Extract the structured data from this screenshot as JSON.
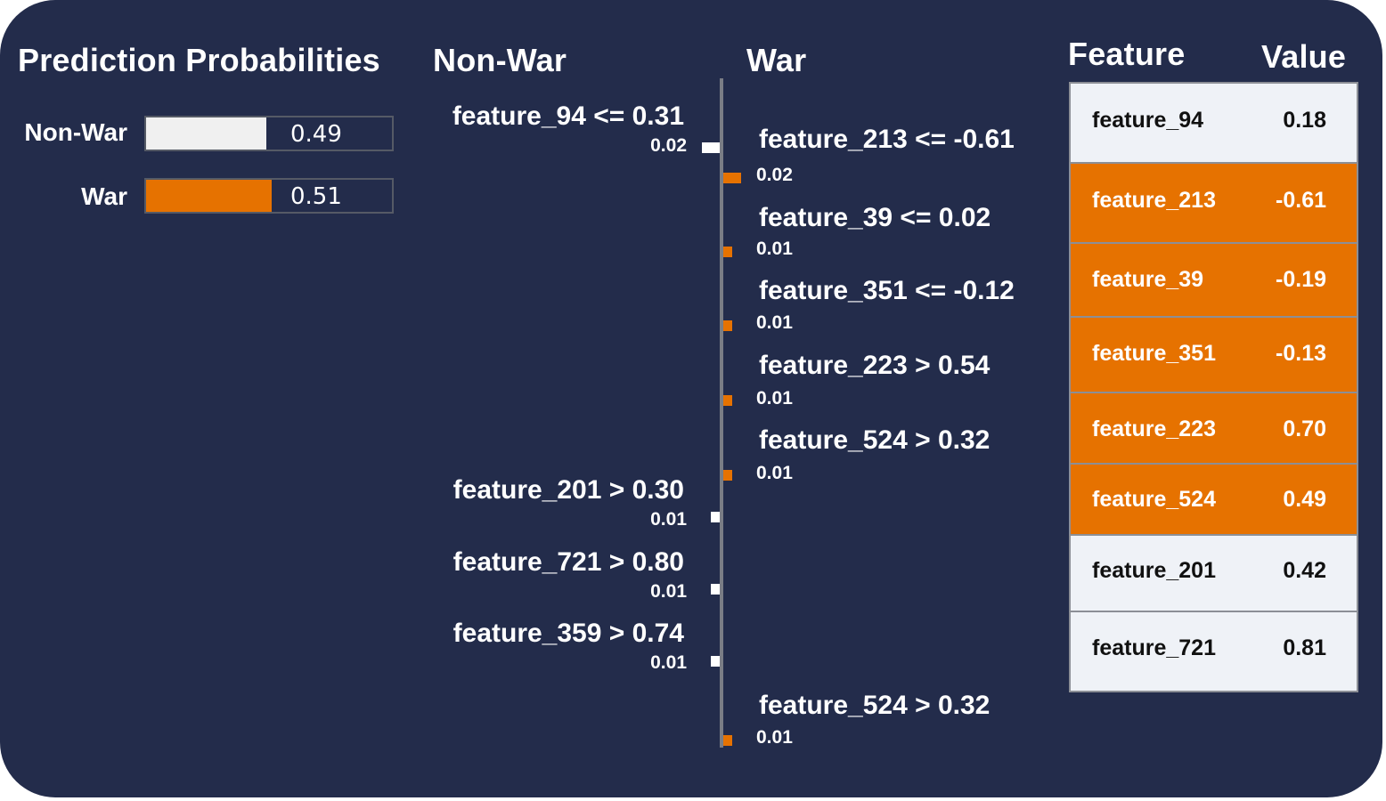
{
  "titles": {
    "prediction": "Prediction Probabilities",
    "negative_class": "Non-War",
    "positive_class": "War",
    "feature_col": "Feature",
    "value_col": "Value"
  },
  "colors": {
    "background": "#232c4b",
    "positive": "#e67200",
    "negative": "#f0f0f0",
    "table_neutral": "#eff2f7",
    "text": "#ffffff",
    "table_text_dark": "#111111"
  },
  "probabilities": [
    {
      "label": "Non-War",
      "value": 0.49,
      "display": "0.49",
      "color": "#f0f0f0"
    },
    {
      "label": "War",
      "value": 0.51,
      "display": "0.51",
      "color": "#e67200"
    }
  ],
  "chart_data": {
    "type": "bar",
    "title": "",
    "side_labels": [
      "Non-War",
      "War"
    ],
    "contributions": [
      {
        "condition": "feature_94 <= 0.31",
        "weight": 0.02,
        "weight_label": "0.02",
        "side": "Non-War"
      },
      {
        "condition": "feature_213 <= -0.61",
        "weight": 0.02,
        "weight_label": "0.02",
        "side": "War"
      },
      {
        "condition": "feature_39 <= 0.02",
        "weight": 0.01,
        "weight_label": "0.01",
        "side": "War"
      },
      {
        "condition": "feature_351 <= -0.12",
        "weight": 0.01,
        "weight_label": "0.01",
        "side": "War"
      },
      {
        "condition": "feature_223 > 0.54",
        "weight": 0.01,
        "weight_label": "0.01",
        "side": "War"
      },
      {
        "condition": "feature_524 > 0.32",
        "weight": 0.01,
        "weight_label": "0.01",
        "side": "War"
      },
      {
        "condition": "feature_201 > 0.30",
        "weight": 0.01,
        "weight_label": "0.01",
        "side": "Non-War"
      },
      {
        "condition": "feature_721 > 0.80",
        "weight": 0.01,
        "weight_label": "0.01",
        "side": "Non-War"
      },
      {
        "condition": "feature_359 > 0.74",
        "weight": 0.01,
        "weight_label": "0.01",
        "side": "Non-War"
      },
      {
        "condition": "feature_524 > 0.32",
        "weight": 0.01,
        "weight_label": "0.01",
        "side": "War"
      }
    ]
  },
  "feature_table": [
    {
      "feature": "feature_94",
      "value": "0.18",
      "highlight": false
    },
    {
      "feature": "feature_213",
      "value": "-0.61",
      "highlight": true
    },
    {
      "feature": "feature_39",
      "value": "-0.19",
      "highlight": true
    },
    {
      "feature": "feature_351",
      "value": "-0.13",
      "highlight": true
    },
    {
      "feature": "feature_223",
      "value": "0.70",
      "highlight": true
    },
    {
      "feature": "feature_524",
      "value": "0.49",
      "highlight": true
    },
    {
      "feature": "feature_201",
      "value": "0.42",
      "highlight": false
    },
    {
      "feature": "feature_721",
      "value": "0.81",
      "highlight": false
    }
  ]
}
